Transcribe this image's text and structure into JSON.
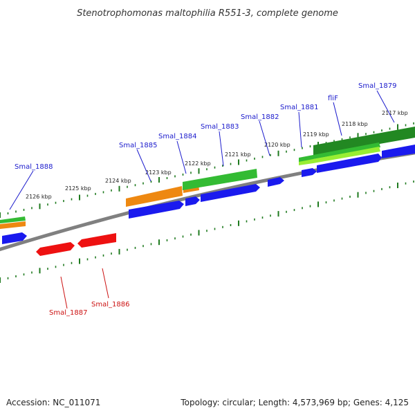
{
  "title": "Stenotrophomonas maltophilia R551-3, complete genome",
  "footer": {
    "accession": "Accession: NC_011071",
    "summary": "Topology: circular; Length: 4,573,969 bp; Genes: 4,125"
  },
  "colors": {
    "background": "#ffffff",
    "backbone": "#808080",
    "ticks": "#1e7a1e",
    "label_blue": "#1a1acc",
    "label_red": "#cc1111",
    "cds": "#1a1aee",
    "red_feature": "#ee1111",
    "orange_feature": "#ee8811",
    "green_feature": "#33bb33",
    "darkgreen_feature": "#228822",
    "lime_feature": "#99ee33"
  },
  "kbp_labels": [
    "2117 kbp",
    "2118 kbp",
    "2119 kbp",
    "2120 kbp",
    "2121 kbp",
    "2122 kbp",
    "2123 kbp",
    "2124 kbp",
    "2125 kbp",
    "2126 kbp"
  ],
  "gene_labels": [
    {
      "text": "Smal_1879",
      "color": "blue"
    },
    {
      "text": "fliF",
      "color": "blue"
    },
    {
      "text": "Smal_1881",
      "color": "blue"
    },
    {
      "text": "Smal_1882",
      "color": "blue"
    },
    {
      "text": "Smal_1883",
      "color": "blue"
    },
    {
      "text": "Smal_1884",
      "color": "blue"
    },
    {
      "text": "Smal_1885",
      "color": "blue"
    },
    {
      "text": "Smal_1888",
      "color": "blue"
    },
    {
      "text": "Smal_1887",
      "color": "red"
    },
    {
      "text": "Smal_1886",
      "color": "red"
    }
  ]
}
